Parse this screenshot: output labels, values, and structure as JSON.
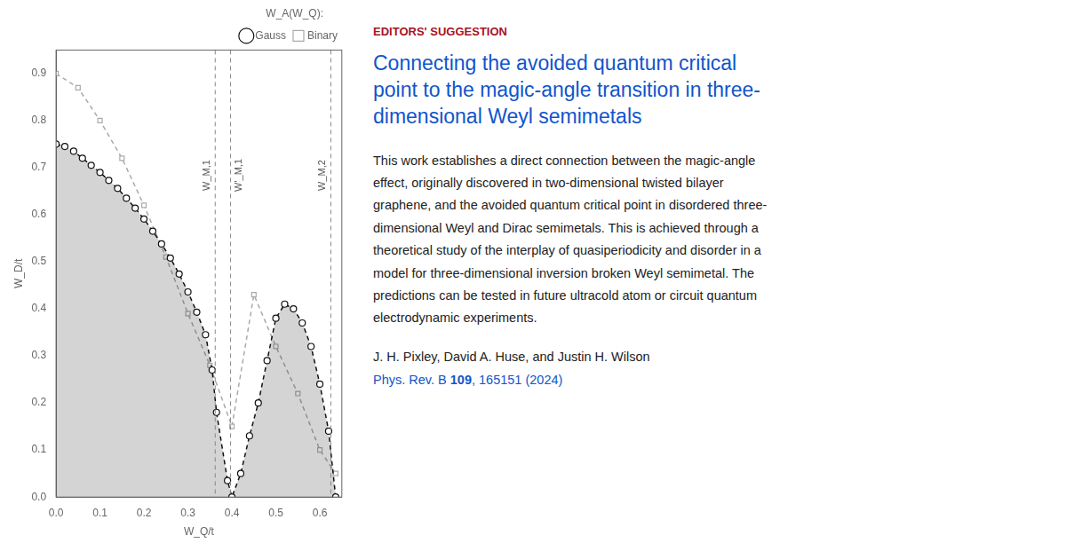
{
  "chart_data": {
    "type": "line",
    "xlabel": "W_Q/t",
    "ylabel": "W_D/t",
    "xlim": [
      0,
      0.65
    ],
    "ylim": [
      0,
      0.95
    ],
    "xticks": [
      {
        "value": 0,
        "label": "0.0"
      },
      0.1,
      0.2,
      0.3,
      0.4,
      0.5,
      0.6
    ],
    "yticks": [
      {
        "value": 0,
        "label": "0.0"
      },
      0.1,
      0.2,
      0.3,
      0.4,
      0.5,
      0.6,
      0.7,
      0.8,
      0.9
    ],
    "grid": false,
    "legend": "top",
    "legend_title": "W_A(W_Q):",
    "series": [
      {
        "name": "Gauss",
        "type": "area",
        "color": "#111111",
        "marker": "circle",
        "line_style": "dashed",
        "x": [
          0.0,
          0.02,
          0.04,
          0.06,
          0.08,
          0.1,
          0.12,
          0.14,
          0.16,
          0.18,
          0.2,
          0.22,
          0.24,
          0.26,
          0.28,
          0.3,
          0.32,
          0.34,
          0.355,
          0.365,
          0.39,
          0.4,
          0.42,
          0.44,
          0.46,
          0.48,
          0.5,
          0.52,
          0.54,
          0.56,
          0.58,
          0.6,
          0.62,
          0.636
        ],
        "values": [
          0.75,
          0.745,
          0.735,
          0.72,
          0.705,
          0.69,
          0.673,
          0.656,
          0.635,
          0.614,
          0.591,
          0.565,
          0.538,
          0.508,
          0.474,
          0.436,
          0.393,
          0.345,
          0.27,
          0.18,
          0.035,
          0.0,
          0.05,
          0.13,
          0.2,
          0.29,
          0.38,
          0.41,
          0.4,
          0.37,
          0.32,
          0.24,
          0.14,
          0.0
        ]
      },
      {
        "name": "Binary",
        "color": "#aaaaaa",
        "marker": "square",
        "line_style": "dashed",
        "x": [
          0.0,
          0.05,
          0.1,
          0.15,
          0.2,
          0.25,
          0.3,
          0.35,
          0.4,
          0.45,
          0.5,
          0.55,
          0.6,
          0.636
        ],
        "values": [
          0.9,
          0.87,
          0.8,
          0.72,
          0.62,
          0.51,
          0.39,
          0.28,
          0.15,
          0.43,
          0.32,
          0.22,
          0.1,
          0.05
        ]
      }
    ],
    "vlines": [
      {
        "x": 0.362,
        "label": "W_M,1",
        "color": "#888888"
      },
      {
        "x": 0.397,
        "label": "W'_M,1",
        "color": "#888888"
      },
      {
        "x": 0.625,
        "label": "W_M,2",
        "color": "#888888"
      }
    ]
  },
  "article": {
    "label": "EDITORS' SUGGESTION",
    "label_color": "#aa1122",
    "title": [
      "Connecting the avoided quantum critical",
      "point to the magic-angle transition in three-",
      "dimensional Weyl semimetals"
    ],
    "title_color": "#1155cc",
    "abstract": [
      "This work establishes a direct connection between the magic-angle",
      "effect, originally discovered in two-dimensional twisted bilayer",
      "graphene, and the avoided quantum critical point in disordered three-",
      "dimensional Weyl and Dirac semimetals. This is achieved through a",
      "theoretical study of the interplay of quasiperiodicity and disorder in a",
      "model for three-dimensional inversion broken Weyl semimetal. The",
      "predictions can be tested in future ultracold atom or circuit quantum",
      "electrodynamic experiments."
    ],
    "text_color": "#222222",
    "authors": "J. H. Pixley, David A. Huse, and Justin H. Wilson",
    "journal": [
      "Phys. Rev. B ",
      "109",
      ", 165151 (2024)"
    ],
    "journal_color": "#1155cc"
  }
}
